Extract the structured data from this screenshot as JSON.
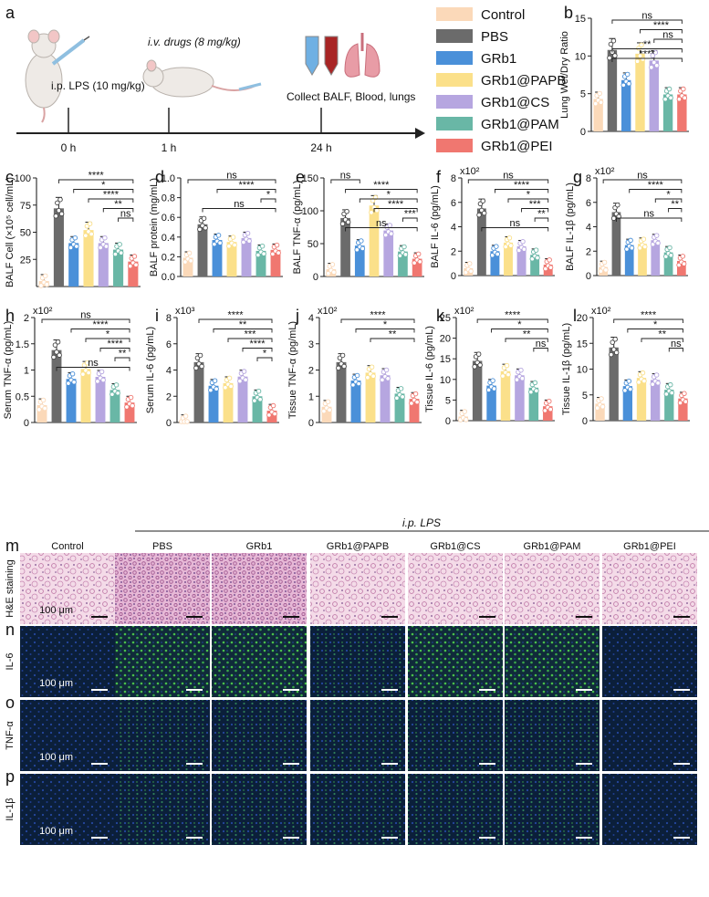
{
  "figure": {
    "panel_labels": [
      "a",
      "b",
      "c",
      "d",
      "e",
      "f",
      "g",
      "h",
      "i",
      "j",
      "k",
      "l",
      "m",
      "n",
      "o",
      "p"
    ],
    "timeline": {
      "step1": "i.p. LPS (10 mg/kg)",
      "step2": "i.v. drugs (8 mg/kg)",
      "step3": "Collect BALF, Blood, lungs",
      "ticks": [
        "0 h",
        "1 h",
        "24 h"
      ]
    },
    "legend": [
      {
        "name": "Control",
        "color": "#fbd9b9"
      },
      {
        "name": "PBS",
        "color": "#6b6b6b"
      },
      {
        "name": "GRb1",
        "color": "#4a90d9"
      },
      {
        "name": "GRb1@PAPB",
        "color": "#fbe08a"
      },
      {
        "name": "GRb1@CS",
        "color": "#b6a6e0"
      },
      {
        "name": "GRb1@PAM",
        "color": "#69b7a6"
      },
      {
        "name": "GRb1@PEI",
        "color": "#f07770"
      }
    ],
    "histology": {
      "lps_label": "i.p. LPS",
      "columns": [
        "Control",
        "PBS",
        "GRb1",
        "GRb1@PAPB",
        "GRb1@CS",
        "GRb1@PAM",
        "GRb1@PEI"
      ],
      "rows": [
        {
          "label": "H&E staining",
          "scale": "100 μm"
        },
        {
          "label": "IL-6",
          "scale": "100 μm"
        },
        {
          "label": "TNF-α",
          "scale": "100 μm"
        },
        {
          "label": "IL-1β",
          "scale": "100 μm"
        }
      ]
    }
  },
  "chart_data": [
    {
      "type": "bar",
      "panel": "b",
      "ylabel": "Lung Wet/Dry Ratio",
      "yticks": [
        "0",
        "5",
        "10",
        "15"
      ],
      "ylim": [
        0,
        15
      ],
      "multiplier": "",
      "categories": [
        "Control",
        "PBS",
        "GRb1",
        "GRb1@PAPB",
        "GRb1@CS",
        "GRb1@PAM",
        "GRb1@PEI"
      ],
      "values": [
        4.3,
        10.8,
        6.8,
        10.3,
        9.4,
        4.9,
        4.9
      ],
      "sig": [
        "ns",
        "****",
        "ns",
        "**",
        "****"
      ]
    },
    {
      "type": "bar",
      "panel": "c",
      "ylabel": "BALF Cell (×10⁵ cell/mL)",
      "yticks": [
        "25",
        "50",
        "75",
        "100"
      ],
      "ylim": [
        0,
        100
      ],
      "multiplier": "",
      "categories": [
        "Control",
        "PBS",
        "GRb1",
        "GRb1@PAPB",
        "GRb1@CS",
        "GRb1@PAM",
        "GRb1@PEI"
      ],
      "values": [
        5,
        72,
        40,
        52,
        40,
        34,
        23
      ],
      "sig": [
        "****",
        "*",
        "****",
        "**",
        "ns"
      ]
    },
    {
      "type": "bar",
      "panel": "d",
      "ylabel": "BALF protein (mg/mL)",
      "yticks": [
        "0.0",
        "0.2",
        "0.4",
        "0.6",
        "0.8",
        "1.0"
      ],
      "ylim": [
        0,
        1
      ],
      "multiplier": "",
      "categories": [
        "Control",
        "PBS",
        "GRb1",
        "GRb1@PAPB",
        "GRb1@CS",
        "GRb1@PAM",
        "GRb1@PEI"
      ],
      "values": [
        0.19,
        0.53,
        0.37,
        0.35,
        0.39,
        0.26,
        0.27
      ],
      "sig": [
        "ns",
        "****",
        "*",
        "ns"
      ]
    },
    {
      "type": "bar",
      "panel": "e",
      "ylabel": "BALF TNF-α (pg/mL)",
      "yticks": [
        "0",
        "50",
        "100",
        "150"
      ],
      "ylim": [
        0,
        150
      ],
      "multiplier": "",
      "categories": [
        "Control",
        "PBS",
        "GRb1",
        "GRb1@PAPB",
        "GRb1@CS",
        "GRb1@PAM",
        "GRb1@PEI"
      ],
      "values": [
        11,
        89,
        47,
        108,
        70,
        38,
        27
      ],
      "sig": [
        "ns",
        "****",
        "*",
        "****",
        "***",
        "ns"
      ]
    },
    {
      "type": "bar",
      "panel": "f",
      "ylabel": "BALF IL-6 (pg/mL)",
      "yticks": [
        "0",
        "2",
        "4",
        "6",
        "8"
      ],
      "ylim": [
        0,
        8
      ],
      "multiplier": "x10²",
      "categories": [
        "Control",
        "PBS",
        "GRb1",
        "GRb1@PAPB",
        "GRb1@CS",
        "GRb1@PAM",
        "GRb1@PEI"
      ],
      "values": [
        0.6,
        5.5,
        2.0,
        2.7,
        2.4,
        1.7,
        0.9
      ],
      "sig": [
        "ns",
        "****",
        "*",
        "***",
        "**",
        "ns"
      ]
    },
    {
      "type": "bar",
      "panel": "g",
      "ylabel": "BALF IL-1β (pg/mL)",
      "yticks": [
        "0",
        "2",
        "4",
        "6",
        "8"
      ],
      "ylim": [
        0,
        8
      ],
      "multiplier": "x10²",
      "categories": [
        "Control",
        "PBS",
        "GRb1",
        "GRb1@PAPB",
        "GRb1@CS",
        "GRb1@PAM",
        "GRb1@PEI"
      ],
      "values": [
        0.7,
        5.2,
        2.5,
        2.6,
        2.9,
        1.9,
        1.2
      ],
      "sig": [
        "ns",
        "****",
        "*",
        "**",
        "ns"
      ]
    },
    {
      "type": "bar",
      "panel": "h",
      "ylabel": "Serum TNF-α (pg/mL)",
      "yticks": [
        "0",
        "0.5",
        "1",
        "1.5",
        "2"
      ],
      "ylim": [
        0,
        2
      ],
      "multiplier": "x10²",
      "categories": [
        "Control",
        "PBS",
        "GRb1",
        "GRb1@PAPB",
        "GRb1@CS",
        "GRb1@PAM",
        "GRb1@PEI"
      ],
      "values": [
        0.33,
        1.38,
        0.83,
        1.02,
        0.87,
        0.62,
        0.38
      ],
      "sig": [
        "ns",
        "****",
        "*",
        "****",
        "**",
        "ns"
      ]
    },
    {
      "type": "bar",
      "panel": "i",
      "ylabel": "Serum IL-6 (pg/mL)",
      "yticks": [
        "0",
        "2",
        "4",
        "6",
        "8"
      ],
      "ylim": [
        0,
        8
      ],
      "multiplier": "x10³",
      "categories": [
        "Control",
        "PBS",
        "GRb1",
        "GRb1@PAPB",
        "GRb1@CS",
        "GRb1@PAM",
        "GRb1@PEI"
      ],
      "values": [
        0.1,
        4.6,
        2.8,
        3.0,
        3.5,
        2.0,
        0.9
      ],
      "sig": [
        "****",
        "**",
        "***",
        "****",
        "*"
      ]
    },
    {
      "type": "bar",
      "panel": "j",
      "ylabel": "Tissue TNF-α (pg/mL)",
      "yticks": [
        "0",
        "1",
        "2",
        "3",
        "4"
      ],
      "ylim": [
        0,
        4
      ],
      "multiplier": "x10²",
      "categories": [
        "Control",
        "PBS",
        "GRb1",
        "GRb1@PAPB",
        "GRb1@CS",
        "GRb1@PAM",
        "GRb1@PEI"
      ],
      "values": [
        0.6,
        2.3,
        1.6,
        1.9,
        1.8,
        1.1,
        0.9
      ],
      "sig": [
        "****",
        "*",
        "**"
      ]
    },
    {
      "type": "bar",
      "panel": "k",
      "ylabel": "Tissue IL-6 (pg/mL)",
      "yticks": [
        "0",
        "5",
        "10",
        "15",
        "20",
        "25"
      ],
      "ylim": [
        0,
        25
      ],
      "multiplier": "x10²",
      "categories": [
        "Control",
        "PBS",
        "GRb1",
        "GRb1@PAPB",
        "GRb1@CS",
        "GRb1@PAM",
        "GRb1@PEI"
      ],
      "values": [
        1,
        14.5,
        8.5,
        12,
        11,
        8,
        3.5
      ],
      "sig": [
        "****",
        "*",
        "**",
        "ns"
      ]
    },
    {
      "type": "bar",
      "panel": "l",
      "ylabel": "Tissue IL-1β (pg/mL)",
      "yticks": [
        "0",
        "5",
        "10",
        "15",
        "20"
      ],
      "ylim": [
        0,
        20
      ],
      "multiplier": "x10²",
      "categories": [
        "Control",
        "PBS",
        "GRb1",
        "GRb1@PAPB",
        "GRb1@CS",
        "GRb1@PAM",
        "GRb1@PEI"
      ],
      "values": [
        3.3,
        14.2,
        6.7,
        8.3,
        7.9,
        6.0,
        4.3
      ],
      "sig": [
        "****",
        "*",
        "**",
        "ns"
      ]
    }
  ]
}
